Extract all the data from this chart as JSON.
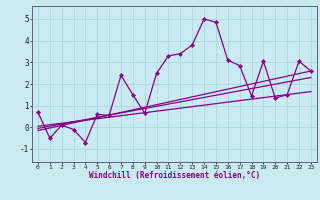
{
  "xlabel": "Windchill (Refroidissement éolien,°C)",
  "ylabel": "",
  "xlim": [
    -0.5,
    23.5
  ],
  "ylim": [
    -1.6,
    5.6
  ],
  "yticks": [
    -1,
    0,
    1,
    2,
    3,
    4,
    5
  ],
  "xticks": [
    0,
    1,
    2,
    3,
    4,
    5,
    6,
    7,
    8,
    9,
    10,
    11,
    12,
    13,
    14,
    15,
    16,
    17,
    18,
    19,
    20,
    21,
    22,
    23
  ],
  "bg_color": "#c8eaf0",
  "line_color": "#880088",
  "grid_color": "#a8d8e0",
  "line1_x": [
    0,
    1,
    2,
    3,
    4,
    5,
    6,
    7,
    8,
    9,
    10,
    11,
    12,
    13,
    14,
    15,
    16,
    17,
    18,
    19,
    20,
    21,
    22,
    23
  ],
  "line1_y": [
    0.7,
    -0.5,
    0.1,
    -0.1,
    -0.7,
    0.6,
    0.55,
    2.4,
    1.5,
    0.65,
    2.5,
    3.3,
    3.4,
    3.8,
    5.0,
    4.85,
    3.1,
    2.85,
    1.45,
    3.05,
    1.35,
    1.5,
    3.05,
    2.6
  ],
  "line2_x": [
    0,
    23
  ],
  "line2_y": [
    -0.15,
    2.6
  ],
  "line3_x": [
    0,
    23
  ],
  "line3_y": [
    0.05,
    1.65
  ],
  "line4_x": [
    0,
    23
  ],
  "line4_y": [
    -0.05,
    2.3
  ]
}
